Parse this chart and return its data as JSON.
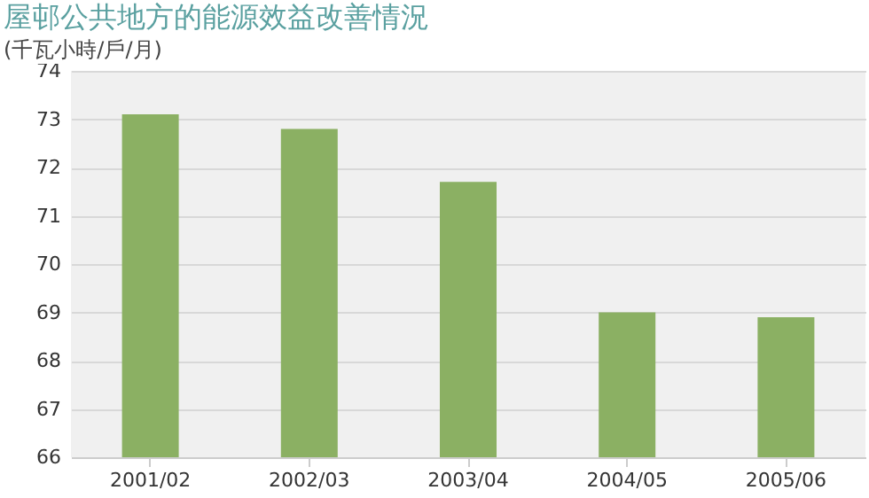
{
  "chart_data": {
    "type": "bar",
    "title": "屋邨公共地方的能源效益改善情況",
    "subtitle": "(千瓦小時/戶/月)",
    "categories": [
      "2001/02",
      "2002/03",
      "2003/04",
      "2004/05",
      "2005/06"
    ],
    "values": [
      73.1,
      72.8,
      71.7,
      69.0,
      68.9
    ],
    "color": "#8bb063",
    "ylim": [
      66,
      74
    ],
    "yticks": [
      66,
      67,
      68,
      69,
      70,
      71,
      72,
      73,
      74
    ],
    "grid": "y"
  }
}
